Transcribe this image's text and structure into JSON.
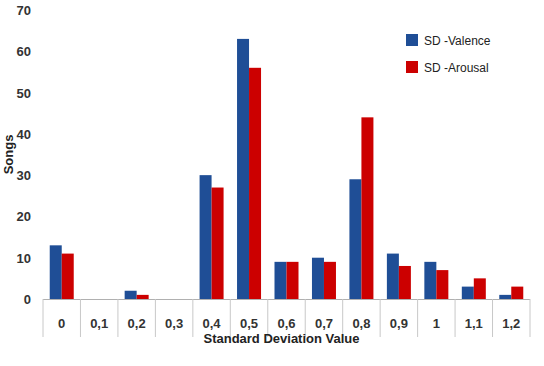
{
  "chart_data": {
    "type": "bar",
    "x_label": "Standard Deviation Value",
    "y_label": "Songs",
    "categories": [
      "0",
      "0,1",
      "0,2",
      "0,3",
      "0,4",
      "0,5",
      "0,6",
      "0,7",
      "0,8",
      "0,9",
      "1",
      "1,1",
      "1,2"
    ],
    "series": [
      {
        "name": "SD -Valence",
        "color": "#1f4e96",
        "values": [
          13,
          0,
          2,
          0,
          30,
          63,
          9,
          10,
          29,
          11,
          9,
          3,
          1
        ]
      },
      {
        "name": "SD -Arousal",
        "color": "#cc0000",
        "values": [
          11,
          0,
          1,
          0,
          27,
          56,
          9,
          9,
          44,
          8,
          7,
          5,
          3
        ]
      }
    ],
    "ylim": [
      0,
      70
    ],
    "yticks": [
      0,
      10,
      20,
      30,
      40,
      50,
      60,
      70
    ],
    "grid": false,
    "legend": "top-right"
  }
}
